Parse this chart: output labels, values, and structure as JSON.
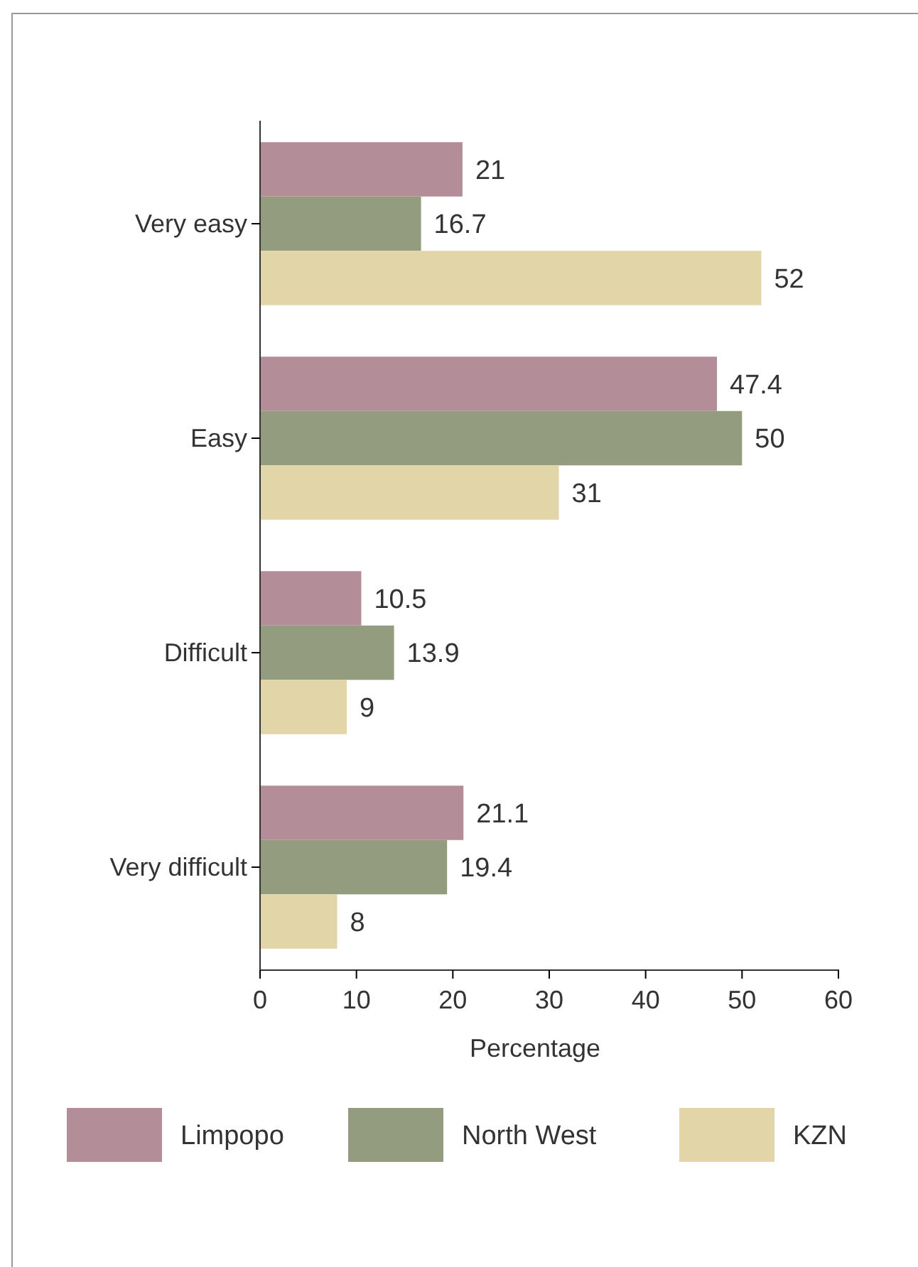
{
  "chart_data": {
    "type": "bar",
    "orientation": "horizontal",
    "xlabel": "Percentage",
    "categories": [
      "Very easy",
      "Easy",
      "Difficult",
      "Very difficult"
    ],
    "series": [
      {
        "name": "Limpopo",
        "color": "#b38d97",
        "values": [
          21,
          47.4,
          10.5,
          21.1
        ]
      },
      {
        "name": "North West",
        "color": "#949c80",
        "values": [
          16.7,
          50,
          13.9,
          19.4
        ]
      },
      {
        "name": "KZN",
        "color": "#e2d5a7",
        "values": [
          52,
          31,
          9,
          8
        ]
      }
    ],
    "xlim": [
      0,
      60
    ],
    "xticks": [
      0,
      10,
      20,
      30,
      40,
      50,
      60
    ],
    "data_labels": true,
    "grid": false,
    "legend": "bottom"
  }
}
